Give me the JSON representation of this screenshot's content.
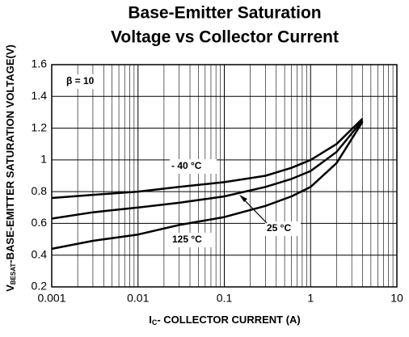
{
  "chart_data": {
    "type": "line",
    "title": [
      "Base-Emitter Saturation",
      "Voltage vs Collector Current"
    ],
    "xlabel": {
      "main": "I",
      "sub": "C",
      "rest": "- COLLECTOR CURRENT (A)"
    },
    "ylabel": {
      "main": "V",
      "sub": "BESAT",
      "rest": "-BASE-EMITTER SATURATION VOLTAGE(V)"
    },
    "annotation": "β = 10",
    "x": [
      0.001,
      0.003,
      0.01,
      0.03,
      0.1,
      0.3,
      0.6,
      1,
      2,
      4
    ],
    "series": [
      {
        "name": "- 40 °C",
        "color": "#000000",
        "values": [
          0.76,
          0.78,
          0.8,
          0.83,
          0.86,
          0.9,
          0.95,
          1.0,
          1.1,
          1.26
        ]
      },
      {
        "name": "25 °C",
        "color": "#000000",
        "values": [
          0.63,
          0.67,
          0.7,
          0.73,
          0.77,
          0.83,
          0.88,
          0.93,
          1.05,
          1.25
        ]
      },
      {
        "name": "125 °C",
        "color": "#000000",
        "values": [
          0.44,
          0.49,
          0.53,
          0.59,
          0.64,
          0.71,
          0.77,
          0.83,
          0.98,
          1.24
        ]
      }
    ],
    "xscale": "log",
    "xlim": [
      0.001,
      10
    ],
    "xticks": [
      0.001,
      0.01,
      0.1,
      1,
      10
    ],
    "ylim": [
      0.2,
      1.6
    ],
    "yticks": [
      0.2,
      0.4,
      0.6,
      0.8,
      1,
      1.2,
      1.4,
      1.6
    ],
    "grid": true
  }
}
